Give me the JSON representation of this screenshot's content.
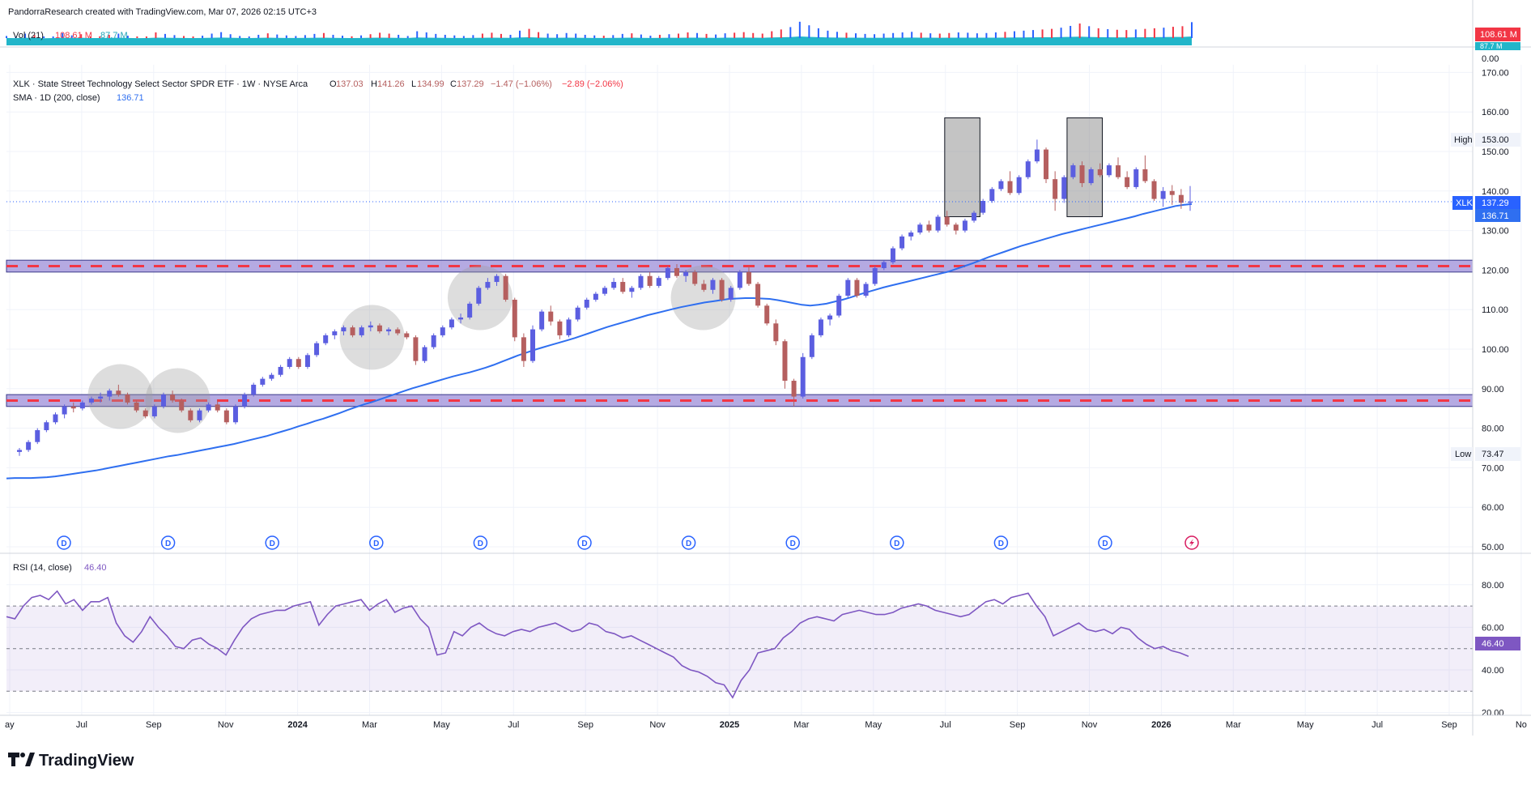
{
  "header": {
    "credit": "PandorraResearch created with TradingView.com, Mar 07, 2026 02:15 UTC+3"
  },
  "volume": {
    "label": "Vol (21)",
    "value1": "108.61 M",
    "value2": "87.7 M",
    "badge_value": "108.61 M",
    "badge_behind": "87.7 M",
    "zero_label": "0.00",
    "colors": {
      "bar_up": "#2962ff",
      "bar_down": "#f23645",
      "ma_fill": "#22b5c9"
    }
  },
  "legend": {
    "title": "XLK · State Street Technology Select Sector SPDR ETF · 1W · NYSE Arca",
    "o_label": "O",
    "o_value": "137.03",
    "h_label": "H",
    "h_value": "141.26",
    "l_label": "L",
    "l_value": "134.99",
    "c_label": "C",
    "c_value": "137.29",
    "change": "−1.47 (−1.06%)",
    "change2": "−2.89 (−2.06%)",
    "sma_label": "SMA · 1D (200, close)",
    "sma_value": "136.71"
  },
  "markers": {
    "high_label": "High",
    "high_value": "153.00",
    "low_label": "Low",
    "low_value": "73.47",
    "ticker_label": "XLK",
    "ticker_value": "137.29",
    "sma_badge": "136.71",
    "dividend_letter": "D"
  },
  "rsi": {
    "label": "RSI (14, close)",
    "value": "46.40",
    "badge": "46.40",
    "upper": 70,
    "middle": 50,
    "lower": 30,
    "colors": {
      "line": "#7e57c2",
      "band": "#7e57c2"
    }
  },
  "branding": {
    "logo_text": "TradingView"
  },
  "colors": {
    "up": "#5b5ee0",
    "down": "#b55f5f",
    "sma": "#2f6ff0",
    "zone_fill": "#9c8ed8",
    "zone_dash": "#f23645",
    "accent": "#2962ff"
  },
  "chart_data": {
    "type": "candlestick",
    "timeframe": "1W",
    "price_axis": {
      "ticks": [
        "50.00",
        "60.00",
        "70.00",
        "80.00",
        "90.00",
        "100.00",
        "110.00",
        "120.00",
        "130.00",
        "140.00",
        "150.00",
        "160.00",
        "170.00"
      ],
      "range": [
        48,
        176
      ]
    },
    "rsi_axis": {
      "ticks": [
        "20.00",
        "40.00",
        "60.00",
        "80.00"
      ],
      "range": [
        14,
        86
      ]
    },
    "time_axis": [
      "ay",
      "Jul",
      "Sep",
      "Nov",
      "2024",
      "Mar",
      "May",
      "Jul",
      "Sep",
      "Nov",
      "2025",
      "Mar",
      "May",
      "Jul",
      "Sep",
      "Nov",
      "2026",
      "Mar",
      "May",
      "Jul",
      "Sep",
      "No"
    ],
    "time_axis_bold": [
      "2024",
      "2025",
      "2026"
    ],
    "support_zones": [
      [
        119.5,
        122.5
      ],
      [
        85.5,
        88.5
      ]
    ],
    "highlight_boxes": [
      {
        "x_from": 129,
        "x_to": 133,
        "low": 133.5,
        "high": 158.5
      },
      {
        "x_from": 146,
        "x_to": 150,
        "low": 133.5,
        "high": 158.5
      }
    ],
    "highlight_circles": [
      {
        "x": 14,
        "price": 88
      },
      {
        "x": 22,
        "price": 87
      },
      {
        "x": 49,
        "price": 103
      },
      {
        "x": 64,
        "price": 113
      },
      {
        "x": 95,
        "price": 113
      }
    ],
    "dividend_x": [
      7,
      20,
      33,
      46,
      59,
      72,
      85,
      98,
      111,
      124,
      137
    ],
    "dividend_upcoming_x": 149,
    "sma_start_x": 0,
    "sma_values": [
      67.3,
      67.4,
      67.4,
      67.4,
      67.5,
      67.6,
      67.8,
      68.1,
      68.4,
      68.7,
      69,
      69.3,
      69.7,
      70.1,
      70.5,
      70.9,
      71.3,
      71.7,
      72.1,
      72.5,
      72.9,
      73.2,
      73.6,
      74,
      74.4,
      74.8,
      75.2,
      75.6,
      76,
      76.5,
      77,
      77.5,
      78,
      78.6,
      79.2,
      79.8,
      80.5,
      81.1,
      81.8,
      82.4,
      83.1,
      83.8,
      84.6,
      85.3,
      86,
      86.6,
      87.3,
      88,
      88.7,
      89.4,
      90.1,
      90.7,
      91.3,
      91.9,
      92.5,
      93.1,
      93.6,
      94.1,
      94.7,
      95.3,
      96,
      96.8,
      97.6,
      98.4,
      99.1,
      99.8,
      100.4,
      101,
      101.6,
      102.2,
      102.8,
      103.5,
      104.2,
      104.9,
      105.6,
      106.2,
      106.8,
      107.4,
      108,
      108.6,
      109.1,
      109.6,
      110.1,
      110.6,
      111,
      111.4,
      111.8,
      112.1,
      112.4,
      112.7,
      112.8,
      112.9,
      112.9,
      112.8,
      112.7,
      112.4,
      112,
      111.6,
      111.2,
      111,
      111.2,
      111.5,
      112,
      112.5,
      113.1,
      113.8,
      114.4,
      115,
      115.6,
      116.1,
      116.6,
      117.1,
      117.6,
      118.1,
      118.6,
      119.1,
      119.6,
      120.3,
      121,
      121.7,
      122.5,
      123.3,
      124,
      124.7,
      125.4,
      126.1,
      126.7,
      127.3,
      127.9,
      128.5,
      129.1,
      129.6,
      130.1,
      130.6,
      131.1,
      131.6,
      132.1,
      132.6,
      133.1,
      133.6,
      134.2,
      134.7,
      135.2,
      135.7,
      136.2,
      136.5,
      136.71
    ],
    "candles_start_x": 0,
    "candles": [
      [
        74,
        75,
        73,
        74.5
      ],
      [
        74.5,
        77,
        74,
        76.5
      ],
      [
        76.5,
        80,
        76,
        79.5
      ],
      [
        79.5,
        82,
        79,
        81.5
      ],
      [
        81.5,
        84,
        81,
        83.5
      ],
      [
        83.5,
        86,
        82.5,
        85.5
      ],
      [
        85.5,
        86.5,
        84,
        85
      ],
      [
        85,
        87,
        84.5,
        86.5
      ],
      [
        86.5,
        88,
        86,
        87.5
      ],
      [
        87.5,
        89,
        86.5,
        88
      ],
      [
        88,
        90,
        87,
        89.5
      ],
      [
        89.5,
        91,
        88,
        88.5
      ],
      [
        88.5,
        89,
        86,
        86.5
      ],
      [
        86.5,
        87,
        84,
        84.5
      ],
      [
        84.5,
        85,
        82.5,
        83
      ],
      [
        83,
        86,
        82.5,
        85.5
      ],
      [
        85.5,
        89,
        85,
        88.5
      ],
      [
        88.5,
        89.5,
        86.5,
        87
      ],
      [
        87,
        87.5,
        84,
        84.5
      ],
      [
        84.5,
        85,
        81.5,
        82
      ],
      [
        82,
        85,
        81.5,
        84.5
      ],
      [
        84.5,
        86.5,
        84,
        86
      ],
      [
        86,
        87,
        84,
        84.5
      ],
      [
        84.5,
        85,
        81,
        81.5
      ],
      [
        81.5,
        86,
        81,
        85.5
      ],
      [
        85.5,
        89,
        85,
        88.5
      ],
      [
        88.5,
        91.5,
        88,
        91
      ],
      [
        91,
        93,
        90.5,
        92.5
      ],
      [
        92.5,
        94,
        92,
        93.5
      ],
      [
        93.5,
        96,
        93,
        95.5
      ],
      [
        95.5,
        98,
        95,
        97.5
      ],
      [
        97.5,
        98,
        95,
        95.5
      ],
      [
        95.5,
        99,
        95,
        98.5
      ],
      [
        98.5,
        102,
        98,
        101.5
      ],
      [
        101.5,
        104,
        101,
        103.5
      ],
      [
        103.5,
        105,
        102.5,
        104.5
      ],
      [
        104.5,
        106,
        103.5,
        105.5
      ],
      [
        105.5,
        106,
        103,
        103.5
      ],
      [
        103.5,
        106,
        103,
        105.5
      ],
      [
        105.5,
        107,
        104.5,
        106
      ],
      [
        106,
        106.5,
        104,
        104.5
      ],
      [
        104.5,
        105.5,
        103.5,
        105
      ],
      [
        105,
        105.5,
        103.5,
        104
      ],
      [
        104,
        104.5,
        102.5,
        103
      ],
      [
        103,
        103.5,
        96,
        97
      ],
      [
        97,
        101,
        96.5,
        100.5
      ],
      [
        100.5,
        104,
        100,
        103.5
      ],
      [
        103.5,
        106,
        103,
        105.5
      ],
      [
        105.5,
        108,
        105,
        107.5
      ],
      [
        107.5,
        109,
        106.5,
        108
      ],
      [
        108,
        112,
        107.5,
        111.5
      ],
      [
        111.5,
        116,
        111,
        115.5
      ],
      [
        115.5,
        118,
        115,
        117
      ],
      [
        117,
        119,
        116,
        118.5
      ],
      [
        118.5,
        119,
        112,
        112.5
      ],
      [
        112.5,
        113,
        102,
        103
      ],
      [
        103,
        104,
        95.5,
        97
      ],
      [
        97,
        106,
        96.5,
        105
      ],
      [
        105,
        110,
        104.5,
        109.5
      ],
      [
        109.5,
        111,
        106,
        107
      ],
      [
        107,
        107.5,
        102.5,
        103.5
      ],
      [
        103.5,
        108,
        103,
        107.5
      ],
      [
        107.5,
        111,
        107,
        110.5
      ],
      [
        110.5,
        113,
        110,
        112.5
      ],
      [
        112.5,
        114.5,
        112,
        114
      ],
      [
        114,
        116,
        113.5,
        115.5
      ],
      [
        115.5,
        118,
        115,
        117
      ],
      [
        117,
        118,
        114,
        114.5
      ],
      [
        114.5,
        116,
        113,
        115.5
      ],
      [
        115.5,
        119,
        115,
        118.5
      ],
      [
        118.5,
        119.5,
        115.5,
        116
      ],
      [
        116,
        118.5,
        115.5,
        118
      ],
      [
        118,
        121,
        117.5,
        120.5
      ],
      [
        120.5,
        121.5,
        118,
        118.5
      ],
      [
        118.5,
        120,
        117,
        119.5
      ],
      [
        119.5,
        120,
        116,
        116.5
      ],
      [
        116.5,
        117.5,
        114.5,
        115
      ],
      [
        115,
        118,
        114,
        117.5
      ],
      [
        117.5,
        118,
        112,
        112.5
      ],
      [
        112.5,
        116,
        112,
        115.5
      ],
      [
        115.5,
        120,
        115,
        119.5
      ],
      [
        119.5,
        121,
        116,
        116.5
      ],
      [
        116.5,
        117,
        110.5,
        111
      ],
      [
        111,
        111.5,
        106,
        106.5
      ],
      [
        106.5,
        107.5,
        101,
        102
      ],
      [
        102,
        102.5,
        90,
        92
      ],
      [
        92,
        92.5,
        85.5,
        88
      ],
      [
        88,
        99,
        87.5,
        98
      ],
      [
        98,
        104,
        97.5,
        103.5
      ],
      [
        103.5,
        108,
        103,
        107.5
      ],
      [
        107.5,
        109,
        106,
        108.5
      ],
      [
        108.5,
        114,
        108,
        113.5
      ],
      [
        113.5,
        118,
        113,
        117.5
      ],
      [
        117.5,
        118,
        113,
        113.5
      ],
      [
        113.5,
        117,
        113,
        116.5
      ],
      [
        116.5,
        121,
        116,
        120.5
      ],
      [
        120.5,
        122.5,
        120,
        122
      ],
      [
        122,
        126,
        121.5,
        125.5
      ],
      [
        125.5,
        129,
        125,
        128.5
      ],
      [
        128.5,
        130,
        127.5,
        129.5
      ],
      [
        129.5,
        132,
        129,
        131.5
      ],
      [
        131.5,
        132.5,
        129.5,
        130
      ],
      [
        130,
        134,
        129.5,
        133.5
      ],
      [
        133.5,
        135,
        131,
        131.5
      ],
      [
        131.5,
        132,
        129,
        130
      ],
      [
        130,
        133,
        129.5,
        132.5
      ],
      [
        132.5,
        135,
        132,
        134.5
      ],
      [
        134.5,
        138,
        134,
        137.5
      ],
      [
        137.5,
        141,
        137,
        140.5
      ],
      [
        140.5,
        143,
        140,
        142.5
      ],
      [
        142.5,
        145,
        139,
        139.5
      ],
      [
        139.5,
        144,
        139,
        143.5
      ],
      [
        143.5,
        148,
        143,
        147.5
      ],
      [
        147.5,
        153,
        147,
        150.5
      ],
      [
        150.5,
        151,
        142,
        143
      ],
      [
        143,
        145,
        135,
        138
      ],
      [
        138,
        144,
        137,
        143.5
      ],
      [
        143.5,
        147,
        143,
        146.5
      ],
      [
        146.5,
        147.5,
        141,
        142
      ],
      [
        142,
        146,
        141.5,
        145.5
      ],
      [
        145.5,
        147,
        143.5,
        144
      ],
      [
        144,
        147,
        143.5,
        146.5
      ],
      [
        146.5,
        148.5,
        143,
        143.5
      ],
      [
        143.5,
        145,
        140.5,
        141
      ],
      [
        141,
        146,
        140.5,
        145.5
      ],
      [
        145.5,
        149,
        142,
        142.5
      ],
      [
        142.5,
        143,
        137.5,
        138
      ],
      [
        138,
        141,
        136,
        140
      ],
      [
        140,
        141.5,
        136.5,
        139
      ],
      [
        139,
        140.5,
        135.5,
        137.03
      ],
      [
        137.03,
        141.26,
        134.99,
        137.29
      ]
    ],
    "volume_values": [
      62,
      58,
      70,
      65,
      55,
      60,
      72,
      64,
      68,
      59,
      61,
      66,
      70,
      63,
      58,
      60,
      74,
      69,
      65,
      62,
      59,
      63,
      70,
      75,
      68,
      62,
      60,
      66,
      71,
      67,
      64,
      62,
      65,
      69,
      72,
      66,
      63,
      61,
      64,
      68,
      73,
      70,
      66,
      62,
      78,
      74,
      69,
      66,
      64,
      62,
      65,
      70,
      73,
      69,
      66,
      80,
      86,
      75,
      70,
      68,
      72,
      70,
      66,
      64,
      63,
      65,
      69,
      71,
      67,
      63,
      66,
      68,
      70,
      74,
      72,
      69,
      67,
      71,
      73,
      75,
      72,
      70,
      78,
      84,
      92,
      110,
      98,
      88,
      80,
      76,
      73,
      71,
      69,
      68,
      70,
      72,
      74,
      76,
      73,
      71,
      70,
      72,
      74,
      73,
      71,
      72,
      74,
      76,
      78,
      80,
      82,
      84,
      86,
      90,
      96,
      104,
      95,
      88,
      85,
      83,
      82,
      84,
      86,
      88,
      90,
      93,
      95,
      108.61
    ],
    "rsi_values": [
      65,
      64,
      70,
      74,
      75,
      73,
      77,
      71,
      73,
      68,
      72,
      72,
      74,
      62,
      56,
      53,
      58,
      65,
      60,
      56,
      51,
      50,
      54,
      55,
      52,
      50,
      47,
      54,
      60,
      64,
      66,
      67,
      68,
      68,
      70,
      71,
      72,
      61,
      66,
      70,
      71,
      72,
      73,
      68,
      71,
      73,
      67,
      69,
      70,
      64,
      60,
      47,
      48,
      58,
      56,
      60,
      62,
      59,
      57,
      56,
      58,
      59,
      58,
      60,
      61,
      62,
      60,
      58,
      59,
      62,
      61,
      58,
      57,
      55,
      56,
      54,
      52,
      50,
      48,
      46,
      42,
      40,
      39,
      37,
      34,
      33,
      27,
      35,
      40,
      48,
      49,
      50,
      55,
      58,
      62,
      64,
      65,
      64,
      63,
      66,
      67,
      68,
      67,
      66,
      66,
      67,
      69,
      70,
      71,
      70,
      68,
      67,
      66,
      65,
      66,
      69,
      72,
      73,
      71,
      74,
      75,
      76,
      70,
      65,
      56,
      58,
      60,
      62,
      59,
      58,
      59,
      57,
      60,
      59,
      55,
      52,
      50,
      51,
      49,
      48,
      46.4
    ]
  }
}
